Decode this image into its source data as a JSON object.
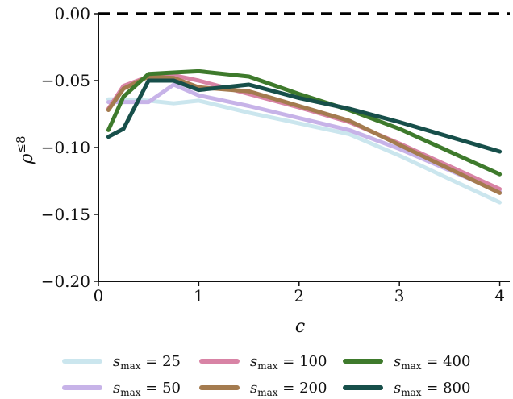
{
  "chart_data": {
    "type": "line",
    "title": "",
    "xlabel": "c",
    "ylabel": "ρ≤8",
    "ylabel_base": "ρ",
    "ylabel_sup": "≤8",
    "xlim": [
      0,
      4.1
    ],
    "ylim": [
      -0.2,
      0.0
    ],
    "xticks": [
      0,
      1,
      2,
      3,
      4
    ],
    "xtick_labels": [
      "0",
      "1",
      "2",
      "3",
      "4"
    ],
    "yticks": [
      0.0,
      -0.05,
      -0.1,
      -0.15,
      -0.2
    ],
    "ytick_labels": [
      "0.00",
      "−0.05",
      "−0.10",
      "−0.15",
      "−0.20"
    ],
    "reference_line": {
      "y": 0.0,
      "style": "dashed",
      "color": "#000000"
    },
    "legend_position": "bottom",
    "legend_var": "s",
    "legend_sub": "max",
    "series": [
      {
        "name": "s_max = 25",
        "value_label": "25",
        "color": "#cbe6ee",
        "x": [
          0.1,
          0.25,
          0.5,
          0.75,
          1.0,
          1.5,
          2.0,
          2.5,
          3.0,
          4.0
        ],
        "y": [
          -0.064,
          -0.064,
          -0.065,
          -0.067,
          -0.065,
          -0.074,
          -0.082,
          -0.09,
          -0.106,
          -0.141
        ]
      },
      {
        "name": "s_max = 50",
        "value_label": "50",
        "color": "#c7b3e8",
        "x": [
          0.1,
          0.25,
          0.5,
          0.75,
          1.0,
          1.5,
          2.0,
          2.5,
          3.0,
          4.0
        ],
        "y": [
          -0.066,
          -0.066,
          -0.066,
          -0.053,
          -0.061,
          -0.069,
          -0.078,
          -0.087,
          -0.101,
          -0.133
        ]
      },
      {
        "name": "s_max = 100",
        "value_label": "100",
        "color": "#d883a5",
        "x": [
          0.1,
          0.25,
          0.5,
          0.75,
          1.0,
          1.5,
          2.0,
          2.5,
          3.0,
          4.0
        ],
        "y": [
          -0.071,
          -0.054,
          -0.047,
          -0.046,
          -0.05,
          -0.06,
          -0.07,
          -0.081,
          -0.097,
          -0.131
        ]
      },
      {
        "name": "s_max = 200",
        "value_label": "200",
        "color": "#a47b4f",
        "x": [
          0.1,
          0.25,
          0.5,
          0.75,
          1.0,
          1.5,
          2.0,
          2.5,
          3.0,
          4.0
        ],
        "y": [
          -0.072,
          -0.056,
          -0.047,
          -0.048,
          -0.055,
          -0.058,
          -0.069,
          -0.08,
          -0.098,
          -0.134
        ]
      },
      {
        "name": "s_max = 400",
        "value_label": "400",
        "color": "#3e7a2c",
        "x": [
          0.1,
          0.25,
          0.5,
          0.75,
          1.0,
          1.5,
          2.0,
          2.5,
          3.0,
          4.0
        ],
        "y": [
          -0.087,
          -0.062,
          -0.045,
          -0.044,
          -0.043,
          -0.047,
          -0.06,
          -0.072,
          -0.086,
          -0.12
        ]
      },
      {
        "name": "s_max = 800",
        "value_label": "800",
        "color": "#174f4a",
        "x": [
          0.1,
          0.25,
          0.5,
          0.75,
          1.0,
          1.5,
          2.0,
          2.5,
          3.0,
          4.0
        ],
        "y": [
          -0.092,
          -0.086,
          -0.05,
          -0.05,
          -0.057,
          -0.053,
          -0.063,
          -0.071,
          -0.081,
          -0.103
        ]
      }
    ]
  }
}
